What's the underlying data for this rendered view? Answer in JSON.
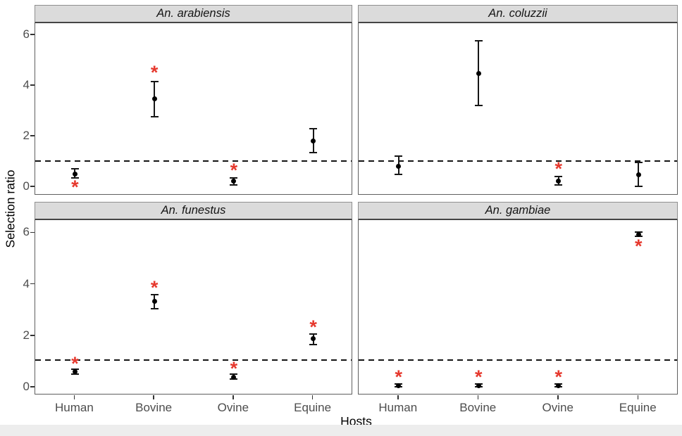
{
  "chart_data": {
    "type": "scatter",
    "title": "",
    "xlabel": "Hosts",
    "ylabel": "Selection ratio",
    "categories": [
      "Human",
      "Bovine",
      "Ovine",
      "Equine"
    ],
    "yticks": [
      0,
      2,
      4,
      6
    ],
    "ylim": [
      -0.33,
      6.45
    ],
    "grid": "off",
    "legend": "none",
    "reference_line_y": 1,
    "significance_marker": "*",
    "facets": [
      {
        "label": "An. arabiensis",
        "points": [
          {
            "host": "Human",
            "y": 0.5,
            "lo": 0.35,
            "hi": 0.7,
            "star": "below",
            "star_y": 0.03
          },
          {
            "host": "Bovine",
            "y": 3.45,
            "lo": 2.75,
            "hi": 4.15,
            "star": "above",
            "star_y": 4.55
          },
          {
            "host": "Ovine",
            "y": 0.2,
            "lo": 0.05,
            "hi": 0.34,
            "star": "above",
            "star_y": 0.7
          },
          {
            "host": "Equine",
            "y": 1.8,
            "lo": 1.35,
            "hi": 2.27,
            "star": "none",
            "star_y": null
          }
        ]
      },
      {
        "label": "An. coluzzii",
        "points": [
          {
            "host": "Human",
            "y": 0.8,
            "lo": 0.47,
            "hi": 1.2,
            "star": "none",
            "star_y": null
          },
          {
            "host": "Bovine",
            "y": 4.45,
            "lo": 3.2,
            "hi": 5.75,
            "star": "none",
            "star_y": null
          },
          {
            "host": "Ovine",
            "y": 0.22,
            "lo": 0.06,
            "hi": 0.4,
            "star": "above",
            "star_y": 0.75
          },
          {
            "host": "Equine",
            "y": 0.45,
            "lo": 0.0,
            "hi": 0.95,
            "star": "none",
            "star_y": null
          }
        ]
      },
      {
        "label": "An. funestus",
        "points": [
          {
            "host": "Human",
            "y": 0.55,
            "lo": 0.45,
            "hi": 0.65,
            "star": "above",
            "star_y": 0.93
          },
          {
            "host": "Bovine",
            "y": 3.3,
            "lo": 3.0,
            "hi": 3.55,
            "star": "above",
            "star_y": 3.88
          },
          {
            "host": "Ovine",
            "y": 0.35,
            "lo": 0.27,
            "hi": 0.45,
            "star": "above",
            "star_y": 0.73
          },
          {
            "host": "Equine",
            "y": 1.83,
            "lo": 1.62,
            "hi": 2.02,
            "star": "above",
            "star_y": 2.36
          }
        ]
      },
      {
        "label": "An. gambiae",
        "points": [
          {
            "host": "Human",
            "y": 0.02,
            "lo": -0.03,
            "hi": 0.07,
            "star": "above",
            "star_y": 0.42
          },
          {
            "host": "Bovine",
            "y": 0.02,
            "lo": -0.03,
            "hi": 0.07,
            "star": "above",
            "star_y": 0.42
          },
          {
            "host": "Ovine",
            "y": 0.02,
            "lo": -0.03,
            "hi": 0.07,
            "star": "above",
            "star_y": 0.42
          },
          {
            "host": "Equine",
            "y": 5.9,
            "lo": 5.82,
            "hi": 5.98,
            "star": "below",
            "star_y": 5.5
          }
        ]
      }
    ],
    "colors": {
      "point": "#000000",
      "error_bar": "#161616",
      "significance": "#e6392e",
      "strip_background": "#dbdbdb",
      "panel_border": "#5f5f5f",
      "reference_line": "#131313",
      "tick_label": "#4d4d4d"
    }
  }
}
